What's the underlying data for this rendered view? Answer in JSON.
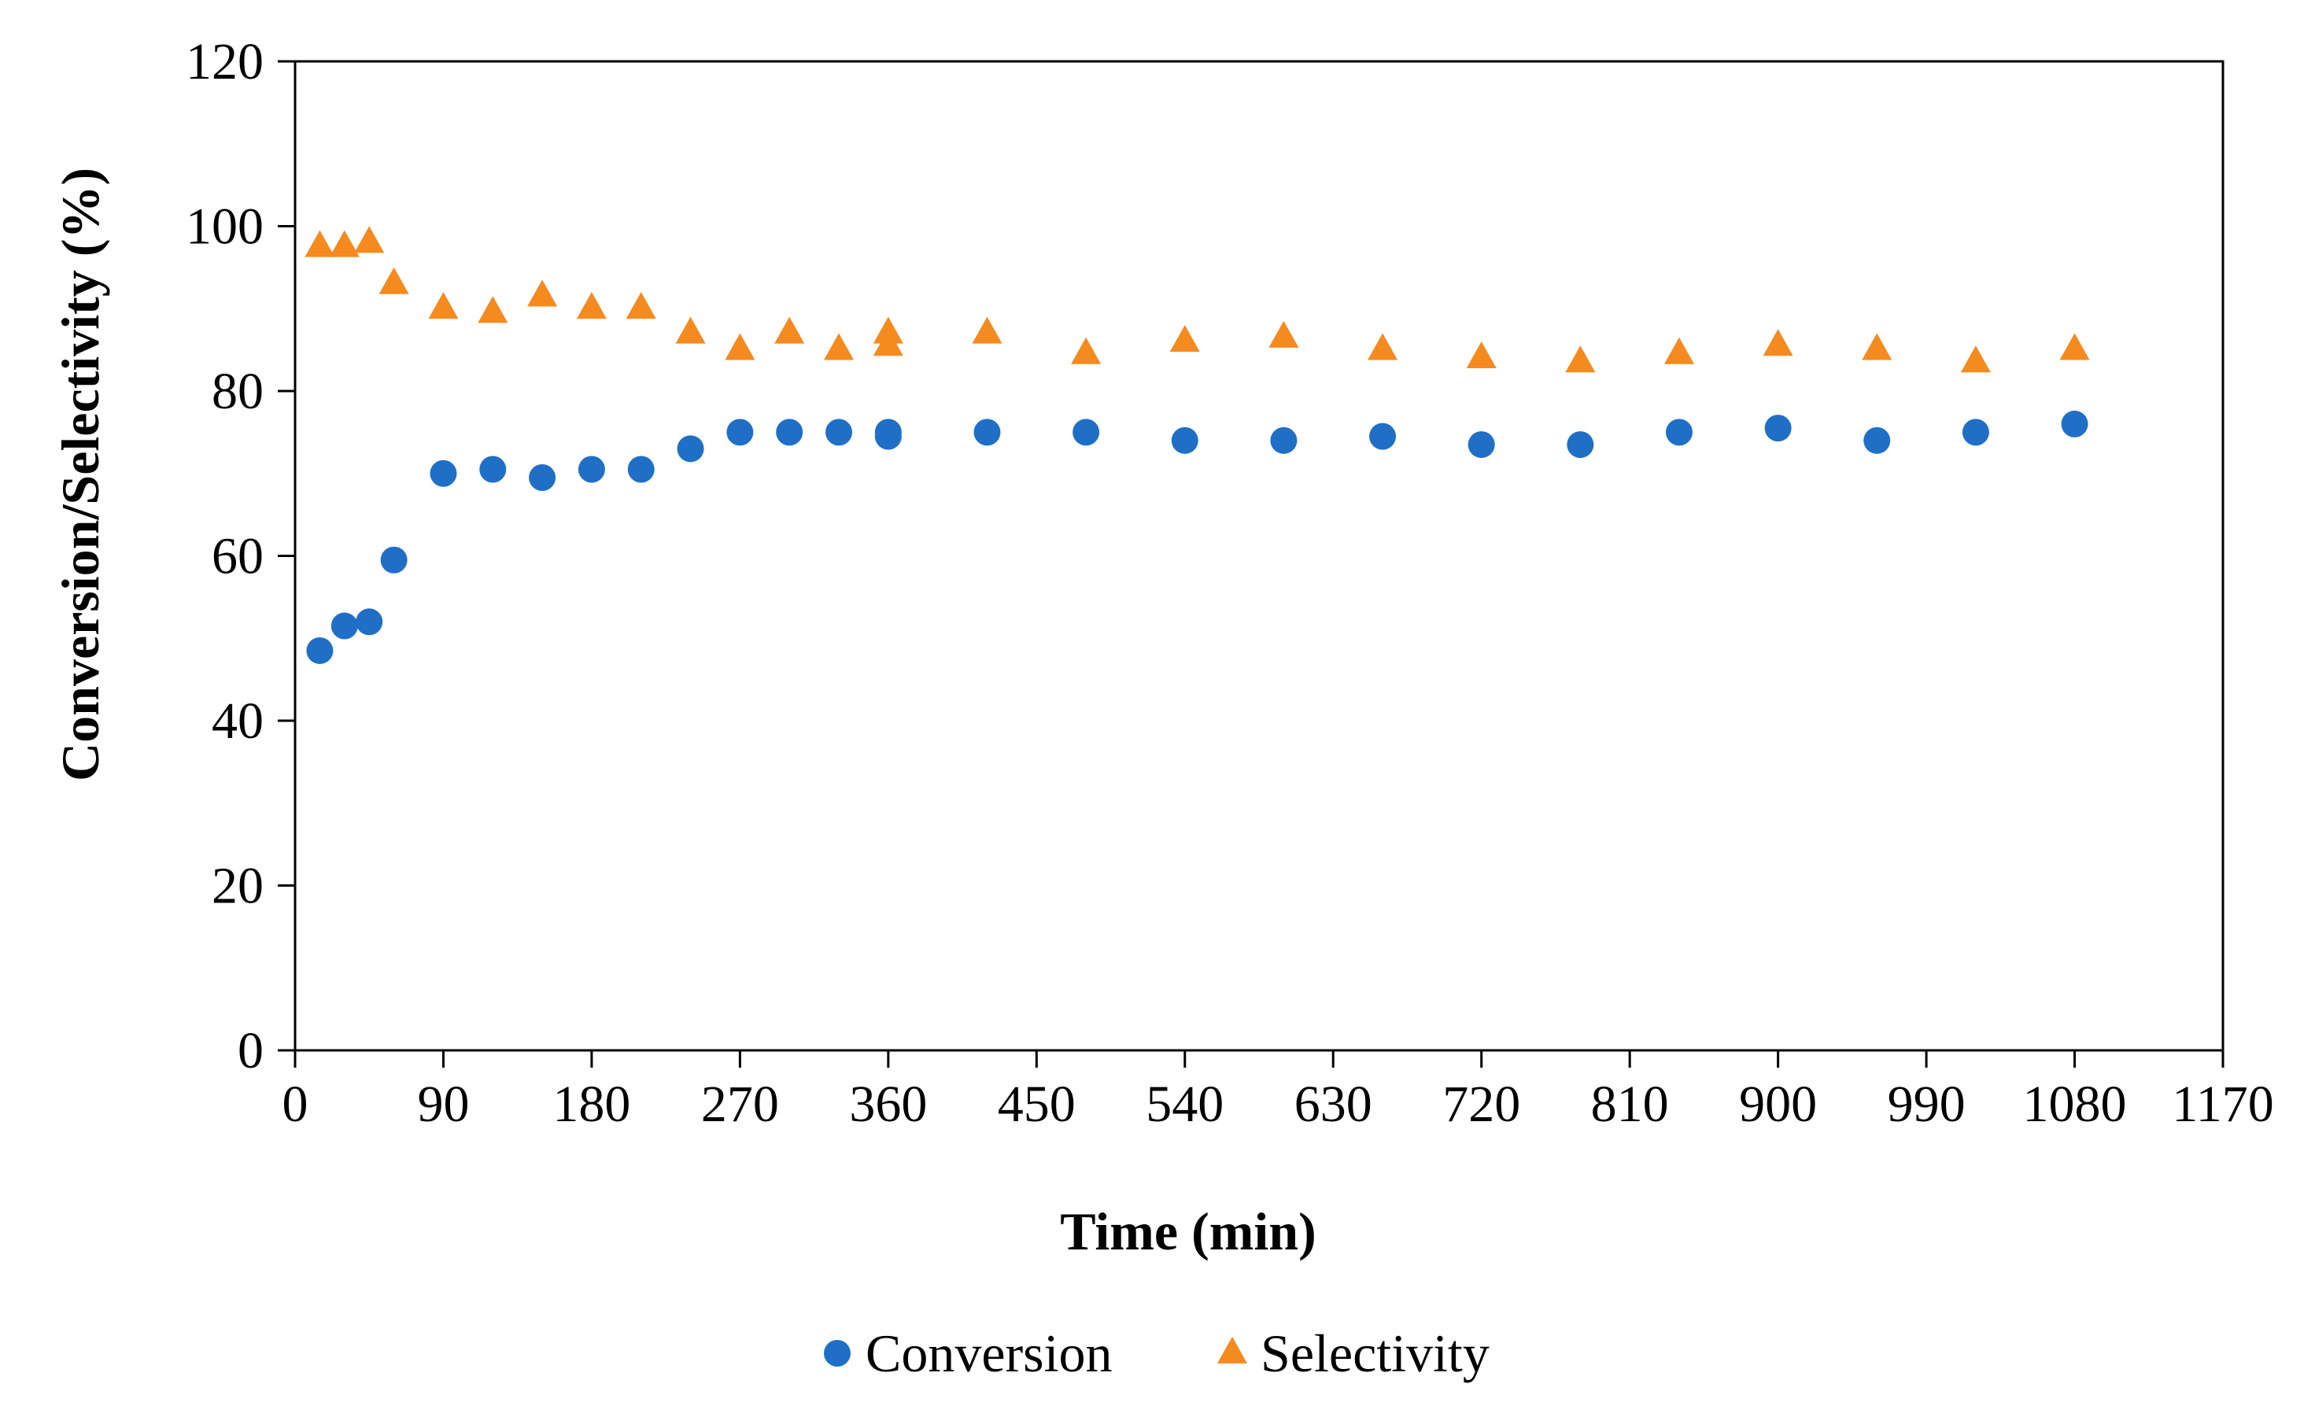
{
  "chart_data": {
    "type": "scatter",
    "title": "",
    "xlabel": "Time (min)",
    "ylabel": "Conversion/Selectivity (%)",
    "xlim": [
      0,
      1170
    ],
    "ylim": [
      0,
      120
    ],
    "xticks": [
      0,
      90,
      180,
      270,
      360,
      450,
      540,
      630,
      720,
      810,
      900,
      990,
      1080,
      1170
    ],
    "yticks": [
      0,
      20,
      40,
      60,
      80,
      100,
      120
    ],
    "grid": false,
    "legend_position": "bottom-center",
    "series": [
      {
        "name": "Conversion",
        "marker": "circle",
        "color": "#1F6FC6",
        "x": [
          15,
          30,
          45,
          60,
          90,
          120,
          150,
          180,
          210,
          240,
          270,
          300,
          330,
          360,
          360,
          420,
          480,
          540,
          600,
          660,
          720,
          780,
          840,
          900,
          960,
          1020,
          1080
        ],
        "y": [
          48.5,
          51.5,
          52,
          59.5,
          70,
          70.5,
          69.5,
          70.5,
          70.5,
          73,
          75,
          75,
          75,
          75,
          74.5,
          75,
          75,
          74,
          74,
          74.5,
          73.5,
          73.5,
          75,
          75.5,
          74,
          75,
          76
        ]
      },
      {
        "name": "Selectivity",
        "marker": "triangle",
        "color": "#F58A1F",
        "x": [
          15,
          30,
          45,
          60,
          90,
          120,
          150,
          180,
          210,
          240,
          270,
          300,
          330,
          360,
          360,
          420,
          480,
          540,
          600,
          660,
          720,
          780,
          840,
          900,
          960,
          1020,
          1080
        ],
        "y": [
          97.5,
          97.5,
          98,
          93,
          90,
          89.5,
          91.5,
          90,
          90,
          87,
          85,
          87,
          85,
          87,
          85.5,
          87,
          84.5,
          86,
          86.5,
          85,
          84,
          83.5,
          84.5,
          85.5,
          85,
          83.5,
          85
        ]
      }
    ]
  }
}
